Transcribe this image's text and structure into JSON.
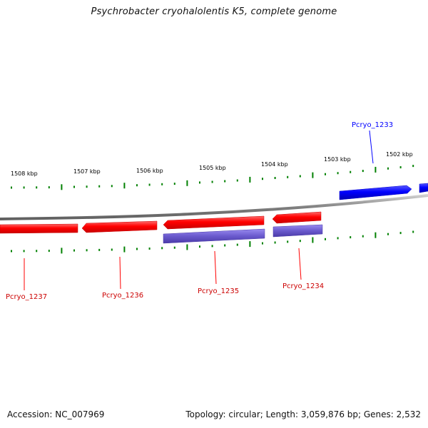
{
  "title": "Psychrobacter cryohalolentis K5, complete genome",
  "footer": {
    "accession": "Accession: NC_007969",
    "summary": "Topology: circular; Length: 3,059,876 bp; Genes: 2,532"
  },
  "colors": {
    "forward_gene": "#0000ff",
    "reverse_gene": "#ff0000",
    "cds": "#6a5acd",
    "tick": "#008000",
    "backbone": "#808080"
  },
  "ruler": {
    "labels": [
      "1508 kbp",
      "1507 kbp",
      "1506 kbp",
      "1505 kbp",
      "1504 kbp",
      "1503 kbp",
      "1502 kbp"
    ]
  },
  "genes": [
    {
      "id": "Pcryo_1233",
      "strand": "forward"
    },
    {
      "id": "Pcryo_1234",
      "strand": "reverse"
    },
    {
      "id": "Pcryo_1235",
      "strand": "reverse"
    },
    {
      "id": "Pcryo_1236",
      "strand": "reverse"
    },
    {
      "id": "Pcryo_1237",
      "strand": "reverse"
    }
  ]
}
